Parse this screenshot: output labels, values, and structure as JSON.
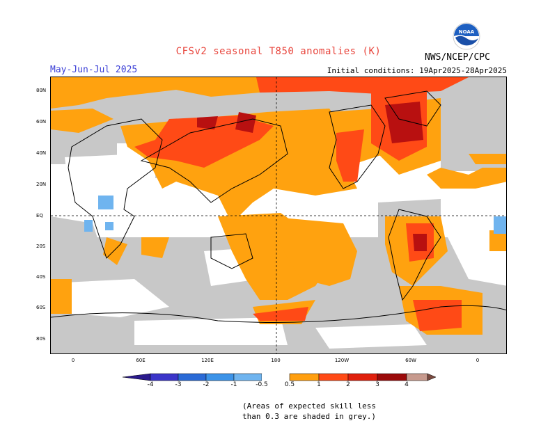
{
  "header": {
    "title": "CFSv2 seasonal T850 anomalies (K)",
    "season": "May-Jun-Jul 2025",
    "initial_conditions": "Initial conditions: 19Apr2025-28Apr2025",
    "agency": "NWS/NCEP/CPC",
    "logo_text": "NOAA"
  },
  "axes": {
    "y_labels": [
      "80N",
      "60N",
      "40N",
      "20N",
      "EQ",
      "20S",
      "40S",
      "60S",
      "80S"
    ],
    "x_labels": [
      "0",
      "60E",
      "120E",
      "180",
      "120W",
      "60W",
      "0"
    ]
  },
  "colorbar": {
    "labels": [
      "-4",
      "-3",
      "-2",
      "-1",
      "-0.5",
      "0.5",
      "1",
      "2",
      "3",
      "4"
    ],
    "colors": {
      "lt_-4": "#2a1a8c",
      "-4_-3": "#3b35c9",
      "-3_-2": "#2a6ad6",
      "-2_-1": "#3c93e8",
      "-1_-0.5": "#6fb4ef",
      "neutral": "#ffffff",
      "0.5_1": "#ff9f0f",
      "1_2": "#ff4a16",
      "2_3": "#e0200d",
      "3_4": "#9b0a0a",
      "gt_4": "#c79a8e",
      "top": "#7a4a40"
    }
  },
  "legend_note": {
    "line1": "(Areas of expected skill less",
    "line2": " than 0.3 are shaded in grey.)"
  },
  "map_colors": {
    "grey": "#c8c8c8",
    "orange": "#ffa20f",
    "red": "#ff4a16",
    "darkred": "#b81010",
    "blue": "#6fb4ef"
  }
}
